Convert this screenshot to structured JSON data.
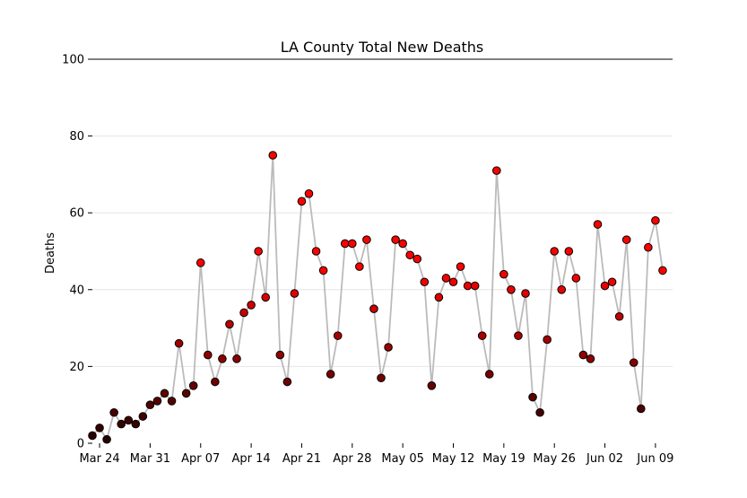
{
  "colors": {
    "line": "#bbbbbb",
    "grid": "#e6e6e6",
    "marker_edge": "#000000",
    "marker_low": "#200000",
    "marker_high": "#ff0000"
  },
  "chart_data": {
    "type": "scatter",
    "title": "LA County Total New Deaths",
    "xlabel": "",
    "ylabel": "Deaths",
    "ylim": [
      0,
      100
    ],
    "yticks": [
      0,
      20,
      40,
      60,
      80,
      100
    ],
    "xtick_labels": [
      "Mar 24",
      "Mar 31",
      "Apr 07",
      "Apr 14",
      "Apr 21",
      "Apr 28",
      "May 05",
      "May 12",
      "May 19",
      "May 26",
      "Jun 02",
      "Jun 09"
    ],
    "xtick_dates": [
      "2020-03-24",
      "2020-03-31",
      "2020-04-07",
      "2020-04-14",
      "2020-04-21",
      "2020-04-28",
      "2020-05-05",
      "2020-05-12",
      "2020-05-19",
      "2020-05-26",
      "2020-06-02",
      "2020-06-09"
    ],
    "grid": "horizontal",
    "line_connecting_points": true,
    "x": [
      "2020-03-23",
      "2020-03-24",
      "2020-03-25",
      "2020-03-26",
      "2020-03-27",
      "2020-03-28",
      "2020-03-29",
      "2020-03-30",
      "2020-03-31",
      "2020-04-01",
      "2020-04-02",
      "2020-04-03",
      "2020-04-04",
      "2020-04-05",
      "2020-04-06",
      "2020-04-07",
      "2020-04-08",
      "2020-04-09",
      "2020-04-10",
      "2020-04-11",
      "2020-04-12",
      "2020-04-13",
      "2020-04-14",
      "2020-04-15",
      "2020-04-16",
      "2020-04-17",
      "2020-04-18",
      "2020-04-19",
      "2020-04-20",
      "2020-04-21",
      "2020-04-22",
      "2020-04-23",
      "2020-04-24",
      "2020-04-25",
      "2020-04-26",
      "2020-04-27",
      "2020-04-28",
      "2020-04-29",
      "2020-04-30",
      "2020-05-01",
      "2020-05-02",
      "2020-05-03",
      "2020-05-04",
      "2020-05-05",
      "2020-05-06",
      "2020-05-07",
      "2020-05-08",
      "2020-05-09",
      "2020-05-10",
      "2020-05-11",
      "2020-05-12",
      "2020-05-13",
      "2020-05-14",
      "2020-05-15",
      "2020-05-16",
      "2020-05-17",
      "2020-05-18",
      "2020-05-19",
      "2020-05-20",
      "2020-05-21",
      "2020-05-22",
      "2020-05-23",
      "2020-05-24",
      "2020-05-25",
      "2020-05-26",
      "2020-05-27",
      "2020-05-28",
      "2020-05-29",
      "2020-05-30",
      "2020-05-31",
      "2020-06-01",
      "2020-06-02",
      "2020-06-03",
      "2020-06-04",
      "2020-06-05",
      "2020-06-06",
      "2020-06-07",
      "2020-06-08",
      "2020-06-09",
      "2020-06-10"
    ],
    "y": [
      2,
      4,
      1,
      8,
      5,
      6,
      5,
      7,
      10,
      11,
      13,
      11,
      26,
      13,
      15,
      47,
      23,
      16,
      22,
      31,
      22,
      34,
      36,
      50,
      38,
      75,
      23,
      16,
      39,
      63,
      65,
      50,
      45,
      18,
      28,
      52,
      52,
      46,
      53,
      35,
      17,
      25,
      53,
      52,
      49,
      48,
      42,
      15,
      38,
      43,
      42,
      46,
      41,
      41,
      28,
      18,
      71,
      44,
      40,
      28,
      39,
      12,
      8,
      27,
      50,
      40,
      50,
      43,
      23,
      22,
      57,
      41,
      42,
      33,
      53,
      21,
      9,
      51,
      58,
      45
    ]
  }
}
